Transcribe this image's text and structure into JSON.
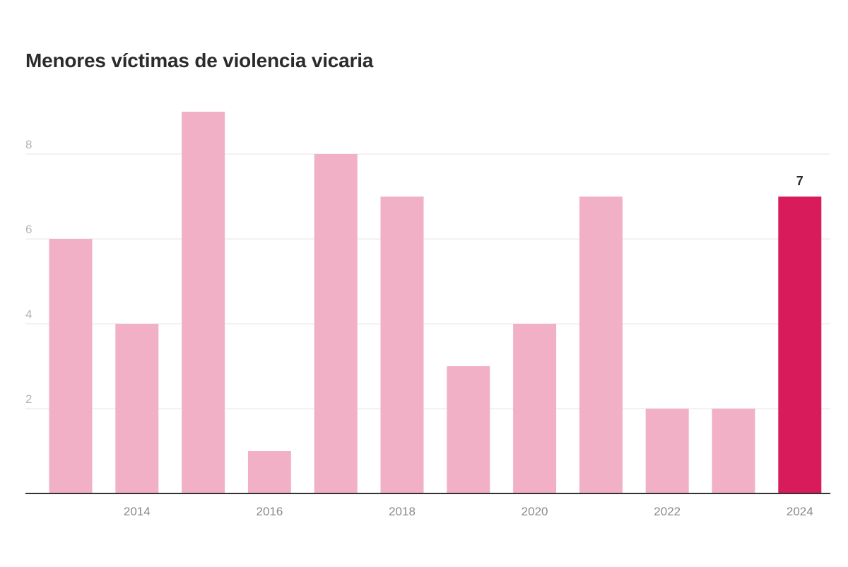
{
  "chart_data": {
    "type": "bar",
    "title": "Menores víctimas de violencia vicaria",
    "xlabel": "",
    "ylabel": "",
    "categories": [
      "2013",
      "2014",
      "2015",
      "2016",
      "2017",
      "2018",
      "2019",
      "2020",
      "2021",
      "2022",
      "2023",
      "2024"
    ],
    "values": [
      6,
      4,
      9,
      1,
      8,
      7,
      3,
      4,
      7,
      2,
      2,
      7
    ],
    "x_tick_labels": [
      "2014",
      "2016",
      "2018",
      "2020",
      "2022",
      "2024"
    ],
    "y_ticks": [
      2,
      4,
      6,
      8
    ],
    "ylim": [
      0,
      9
    ],
    "grid": true,
    "legend": "none",
    "highlight": {
      "category": "2024",
      "label": "7"
    },
    "colors": {
      "bar": "#f2b0c7",
      "highlight": "#d81b5a",
      "grid": "#e6e6e6",
      "axis": "#333333"
    }
  }
}
